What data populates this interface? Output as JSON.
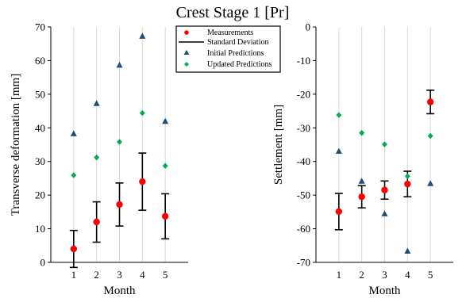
{
  "title": "Crest Stage 1 [Pr]",
  "legend": {
    "items": [
      {
        "label": "Measurements",
        "marker": "circle",
        "color": "#ff0000"
      },
      {
        "label": "Standard Deviation",
        "marker": "errorbar",
        "color": "#000000"
      },
      {
        "label": "Initial Predictions",
        "marker": "triangle",
        "color": "#1f4e79"
      },
      {
        "label": "Updated Predictions",
        "marker": "diamond",
        "color": "#00b050"
      }
    ]
  },
  "chart_data": [
    {
      "type": "scatter",
      "xlabel": "Month",
      "ylabel": "Transverse deformation [mm]",
      "x": [
        1,
        2,
        3,
        4,
        5
      ],
      "xticks": [
        "1",
        "2",
        "3",
        "4",
        "5"
      ],
      "xlim": [
        0,
        6
      ],
      "ylim": [
        0,
        70
      ],
      "yticks": [
        0,
        10,
        20,
        30,
        40,
        50,
        60,
        70
      ],
      "grid": "vertical",
      "series": [
        {
          "name": "Measurements",
          "values": [
            4,
            12,
            17.2,
            24,
            13.7
          ],
          "err": [
            5.5,
            6,
            6.4,
            8.5,
            6.7
          ],
          "color": "#ff0000",
          "marker": "circle"
        },
        {
          "name": "Initial Predictions",
          "values": [
            38.2,
            47.2,
            58.6,
            67.2,
            41.9
          ],
          "color": "#1f4e79",
          "marker": "triangle"
        },
        {
          "name": "Updated Predictions",
          "values": [
            25.9,
            31.2,
            35.8,
            44.4,
            28.7
          ],
          "color": "#00b050",
          "marker": "diamond"
        }
      ]
    },
    {
      "type": "scatter",
      "xlabel": "Month",
      "ylabel": "Settlement [mm]",
      "x": [
        1,
        2,
        3,
        4,
        5
      ],
      "xticks": [
        "1",
        "2",
        "3",
        "4",
        "5"
      ],
      "xlim": [
        0,
        6
      ],
      "ylim": [
        -70,
        0
      ],
      "yticks": [
        0,
        -10,
        -20,
        -30,
        -40,
        -50,
        -60,
        -70
      ],
      "grid": "vertical",
      "series": [
        {
          "name": "Measurements",
          "values": [
            -54.9,
            -50.5,
            -48.5,
            -46.7,
            -22.3
          ],
          "err": [
            5.4,
            3.3,
            2.7,
            3.8,
            3.5
          ],
          "color": "#ff0000",
          "marker": "circle"
        },
        {
          "name": "Initial Predictions",
          "values": [
            -37,
            -45.9,
            -55.6,
            -66.7,
            -46.6
          ],
          "color": "#1f4e79",
          "marker": "triangle"
        },
        {
          "name": "Updated Predictions",
          "values": [
            -26.2,
            -31.5,
            -34.9,
            -44.4,
            -32.4
          ],
          "color": "#00b050",
          "marker": "diamond"
        }
      ]
    }
  ]
}
